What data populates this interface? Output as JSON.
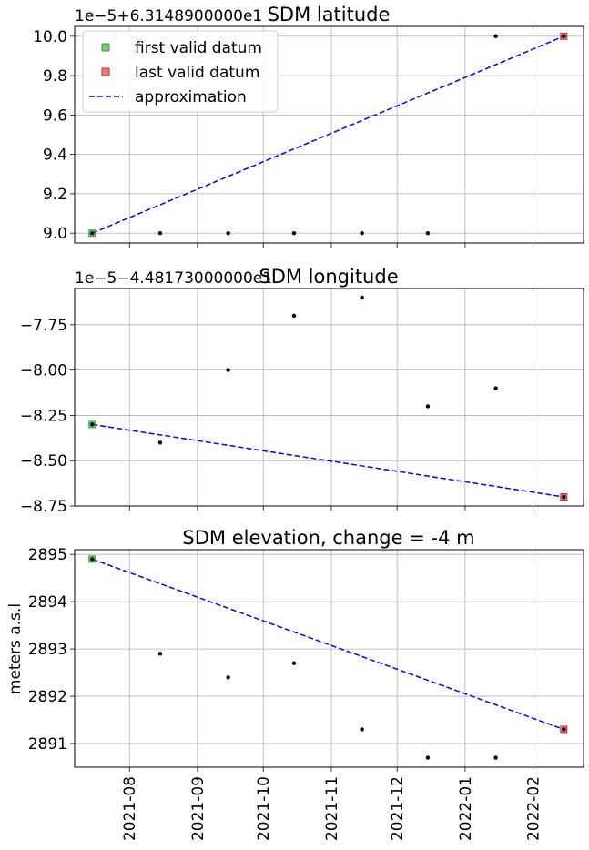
{
  "chart_data": [
    {
      "type": "scatter",
      "title": "SDM latitude",
      "offset_label": "1e−5+6.3148900000e1",
      "ylabel": "",
      "ylim": [
        8.95,
        10.05
      ],
      "yticks": [
        9.0,
        9.2,
        9.4,
        9.6,
        9.8,
        10.0
      ],
      "ytick_labels": [
        "9.0",
        "9.2",
        "9.4",
        "9.6",
        "9.8",
        "10.0"
      ],
      "legend": {
        "placement": "top-left",
        "entries": [
          "first valid datum",
          "last valid datum",
          "approximation"
        ]
      },
      "series": [
        {
          "name": "data",
          "x": [
            "2021-07-15",
            "2021-08-15",
            "2021-09-15",
            "2021-10-15",
            "2021-11-15",
            "2021-12-15",
            "2022-01-15",
            "2022-02-15"
          ],
          "y": [
            9.0,
            9.0,
            9.0,
            9.0,
            9.0,
            9.0,
            10.0,
            10.0
          ]
        },
        {
          "name": "first valid datum",
          "x": [
            "2021-07-15"
          ],
          "y": [
            9.0
          ]
        },
        {
          "name": "last valid datum",
          "x": [
            "2022-02-15"
          ],
          "y": [
            10.0
          ]
        },
        {
          "name": "approximation",
          "x": [
            "2021-07-15",
            "2022-02-15"
          ],
          "y": [
            9.0,
            10.0
          ]
        }
      ]
    },
    {
      "type": "scatter",
      "title": "SDM longitude",
      "offset_label": "1e−5−4.48173000000e1",
      "ylabel": "",
      "ylim": [
        -8.75,
        -7.55
      ],
      "yticks": [
        -8.75,
        -8.5,
        -8.25,
        -8.0,
        -7.75
      ],
      "ytick_labels": [
        "−8.75",
        "−8.50",
        "−8.25",
        "−8.00",
        "−7.75"
      ],
      "series": [
        {
          "name": "data",
          "x": [
            "2021-07-15",
            "2021-08-15",
            "2021-09-15",
            "2021-10-15",
            "2021-11-15",
            "2021-12-15",
            "2022-01-15",
            "2022-02-15"
          ],
          "y": [
            -8.3,
            -8.4,
            -8.0,
            -7.7,
            -7.6,
            -8.2,
            -8.1,
            -8.7
          ]
        },
        {
          "name": "first valid datum",
          "x": [
            "2021-07-15"
          ],
          "y": [
            -8.3
          ]
        },
        {
          "name": "last valid datum",
          "x": [
            "2022-02-15"
          ],
          "y": [
            -8.7
          ]
        },
        {
          "name": "approximation",
          "x": [
            "2021-07-15",
            "2022-02-15"
          ],
          "y": [
            -8.3,
            -8.7
          ]
        }
      ]
    },
    {
      "type": "scatter",
      "title": "SDM elevation, change = -4 m",
      "offset_label": "",
      "ylabel": "meters a.s.l",
      "ylim": [
        2890.5,
        2895.1
      ],
      "yticks": [
        2891,
        2892,
        2893,
        2894,
        2895
      ],
      "ytick_labels": [
        "2891",
        "2892",
        "2893",
        "2894",
        "2895"
      ],
      "series": [
        {
          "name": "data",
          "x": [
            "2021-07-15",
            "2021-08-15",
            "2021-09-15",
            "2021-10-15",
            "2021-11-15",
            "2021-12-15",
            "2022-01-15",
            "2022-02-15"
          ],
          "y": [
            2894.9,
            2892.9,
            2892.4,
            2892.7,
            2891.3,
            2890.7,
            2890.7,
            2891.3
          ]
        },
        {
          "name": "first valid datum",
          "x": [
            "2021-07-15"
          ],
          "y": [
            2894.9
          ]
        },
        {
          "name": "last valid datum",
          "x": [
            "2022-02-15"
          ],
          "y": [
            2891.3
          ]
        },
        {
          "name": "approximation",
          "x": [
            "2021-07-15",
            "2022-02-15"
          ],
          "y": [
            2894.9,
            2891.3
          ]
        }
      ]
    }
  ],
  "x_axis": {
    "ticks": [
      "2021-08-01",
      "2021-09-01",
      "2021-10-01",
      "2021-11-01",
      "2021-12-01",
      "2022-01-01",
      "2022-02-01"
    ],
    "tick_labels": [
      "2021-08",
      "2021-09",
      "2021-10",
      "2021-11",
      "2021-12",
      "2022-01",
      "2022-02"
    ],
    "xlim": [
      "2021-07-07",
      "2022-02-24"
    ]
  },
  "grid": true,
  "colors": {
    "data": "#000000",
    "first": "#2ca02c",
    "last": "#d62728",
    "approx": "#0000ff",
    "grid": "#b0b0b0"
  }
}
